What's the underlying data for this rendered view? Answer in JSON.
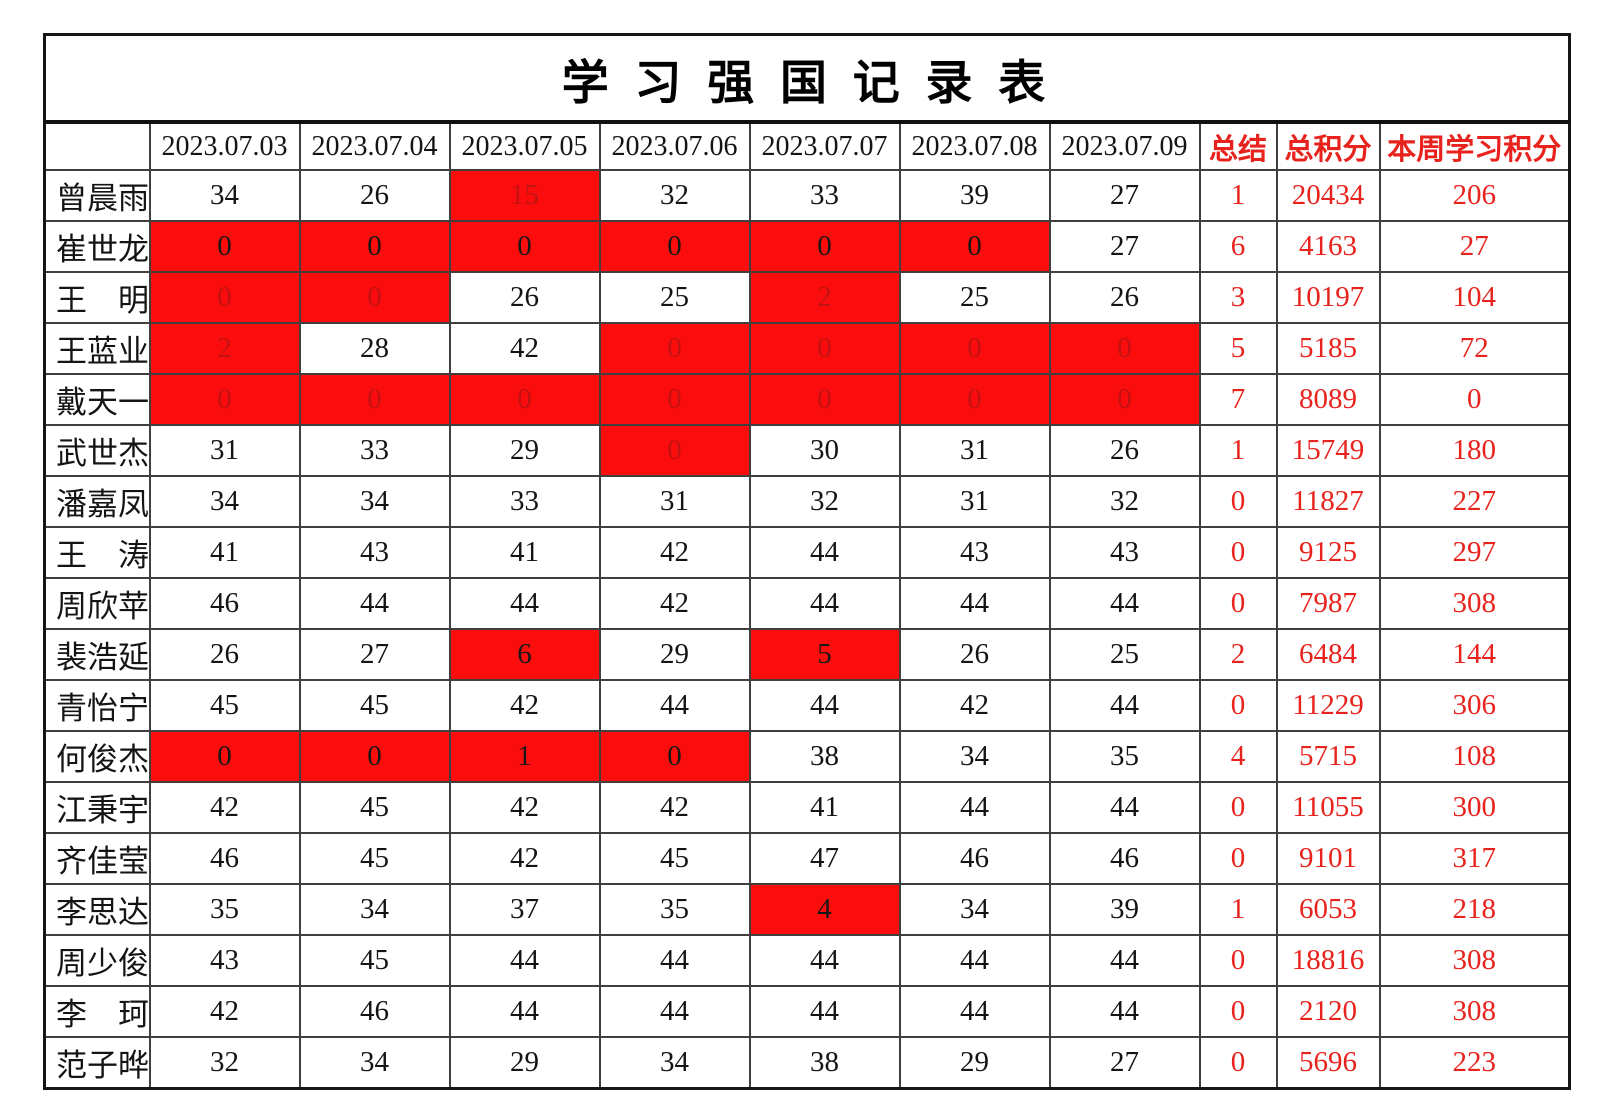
{
  "table": {
    "title": "学 习 强 国 记 录 表",
    "columns": {
      "dates": [
        "2023.07.03",
        "2023.07.04",
        "2023.07.05",
        "2023.07.06",
        "2023.07.07",
        "2023.07.08",
        "2023.07.09"
      ],
      "summary": "总结",
      "total": "总积分",
      "week": "本周学习积分"
    },
    "rows": [
      {
        "name": "曾晨雨",
        "days": [
          {
            "v": "34"
          },
          {
            "v": "26"
          },
          {
            "v": "15",
            "s": "rd"
          },
          {
            "v": "32"
          },
          {
            "v": "33"
          },
          {
            "v": "39"
          },
          {
            "v": "27"
          }
        ],
        "summary": "1",
        "total": "20434",
        "week": "206"
      },
      {
        "name": "崔世龙",
        "days": [
          {
            "v": "0",
            "s": "r"
          },
          {
            "v": "0",
            "s": "r"
          },
          {
            "v": "0",
            "s": "r"
          },
          {
            "v": "0",
            "s": "r"
          },
          {
            "v": "0",
            "s": "r"
          },
          {
            "v": "0",
            "s": "r"
          },
          {
            "v": "27"
          }
        ],
        "summary": "6",
        "total": "4163",
        "week": "27"
      },
      {
        "name": "王　明",
        "days": [
          {
            "v": "0",
            "s": "rd"
          },
          {
            "v": "0",
            "s": "rd"
          },
          {
            "v": "26"
          },
          {
            "v": "25"
          },
          {
            "v": "2",
            "s": "rd"
          },
          {
            "v": "25"
          },
          {
            "v": "26"
          }
        ],
        "summary": "3",
        "total": "10197",
        "week": "104"
      },
      {
        "name": "王蓝业",
        "days": [
          {
            "v": "2",
            "s": "rd"
          },
          {
            "v": "28"
          },
          {
            "v": "42"
          },
          {
            "v": "0",
            "s": "rd"
          },
          {
            "v": "0",
            "s": "rd"
          },
          {
            "v": "0",
            "s": "rd"
          },
          {
            "v": "0",
            "s": "rd"
          }
        ],
        "summary": "5",
        "total": "5185",
        "week": "72"
      },
      {
        "name": "戴天一",
        "days": [
          {
            "v": "0",
            "s": "rd"
          },
          {
            "v": "0",
            "s": "rd"
          },
          {
            "v": "0",
            "s": "rd"
          },
          {
            "v": "0",
            "s": "rd"
          },
          {
            "v": "0",
            "s": "rd"
          },
          {
            "v": "0",
            "s": "rd"
          },
          {
            "v": "0",
            "s": "rd"
          }
        ],
        "summary": "7",
        "total": "8089",
        "week": "0"
      },
      {
        "name": "武世杰",
        "days": [
          {
            "v": "31"
          },
          {
            "v": "33"
          },
          {
            "v": "29"
          },
          {
            "v": "0",
            "s": "rd"
          },
          {
            "v": "30"
          },
          {
            "v": "31"
          },
          {
            "v": "26"
          }
        ],
        "summary": "1",
        "total": "15749",
        "week": "180"
      },
      {
        "name": "潘嘉凤",
        "days": [
          {
            "v": "34"
          },
          {
            "v": "34"
          },
          {
            "v": "33"
          },
          {
            "v": "31"
          },
          {
            "v": "32"
          },
          {
            "v": "31"
          },
          {
            "v": "32"
          }
        ],
        "summary": "0",
        "total": "11827",
        "week": "227"
      },
      {
        "name": "王　涛",
        "days": [
          {
            "v": "41"
          },
          {
            "v": "43"
          },
          {
            "v": "41"
          },
          {
            "v": "42"
          },
          {
            "v": "44"
          },
          {
            "v": "43"
          },
          {
            "v": "43"
          }
        ],
        "summary": "0",
        "total": "9125",
        "week": "297"
      },
      {
        "name": "周欣苹",
        "days": [
          {
            "v": "46"
          },
          {
            "v": "44"
          },
          {
            "v": "44"
          },
          {
            "v": "42"
          },
          {
            "v": "44"
          },
          {
            "v": "44"
          },
          {
            "v": "44"
          }
        ],
        "summary": "0",
        "total": "7987",
        "week": "308"
      },
      {
        "name": "裴浩延",
        "days": [
          {
            "v": "26"
          },
          {
            "v": "27"
          },
          {
            "v": "6",
            "s": "r"
          },
          {
            "v": "29"
          },
          {
            "v": "5",
            "s": "r"
          },
          {
            "v": "26"
          },
          {
            "v": "25"
          }
        ],
        "summary": "2",
        "total": "6484",
        "week": "144"
      },
      {
        "name": "青怡宁",
        "days": [
          {
            "v": "45"
          },
          {
            "v": "45"
          },
          {
            "v": "42"
          },
          {
            "v": "44"
          },
          {
            "v": "44"
          },
          {
            "v": "42"
          },
          {
            "v": "44"
          }
        ],
        "summary": "0",
        "total": "11229",
        "week": "306"
      },
      {
        "name": "何俊杰",
        "days": [
          {
            "v": "0",
            "s": "r"
          },
          {
            "v": "0",
            "s": "r"
          },
          {
            "v": "1",
            "s": "r"
          },
          {
            "v": "0",
            "s": "r"
          },
          {
            "v": "38"
          },
          {
            "v": "34"
          },
          {
            "v": "35"
          }
        ],
        "summary": "4",
        "total": "5715",
        "week": "108"
      },
      {
        "name": "江秉宇",
        "days": [
          {
            "v": "42"
          },
          {
            "v": "45"
          },
          {
            "v": "42"
          },
          {
            "v": "42"
          },
          {
            "v": "41"
          },
          {
            "v": "44"
          },
          {
            "v": "44"
          }
        ],
        "summary": "0",
        "total": "11055",
        "week": "300"
      },
      {
        "name": "齐佳莹",
        "days": [
          {
            "v": "46"
          },
          {
            "v": "45"
          },
          {
            "v": "42"
          },
          {
            "v": "45"
          },
          {
            "v": "47"
          },
          {
            "v": "46"
          },
          {
            "v": "46"
          }
        ],
        "summary": "0",
        "total": "9101",
        "week": "317"
      },
      {
        "name": "李思达",
        "days": [
          {
            "v": "35"
          },
          {
            "v": "34"
          },
          {
            "v": "37"
          },
          {
            "v": "35"
          },
          {
            "v": "4",
            "s": "r"
          },
          {
            "v": "34"
          },
          {
            "v": "39"
          }
        ],
        "summary": "1",
        "total": "6053",
        "week": "218"
      },
      {
        "name": "周少俊",
        "days": [
          {
            "v": "43"
          },
          {
            "v": "45"
          },
          {
            "v": "44"
          },
          {
            "v": "44"
          },
          {
            "v": "44"
          },
          {
            "v": "44"
          },
          {
            "v": "44"
          }
        ],
        "summary": "0",
        "total": "18816",
        "week": "308"
      },
      {
        "name": "李　珂",
        "days": [
          {
            "v": "42"
          },
          {
            "v": "46"
          },
          {
            "v": "44"
          },
          {
            "v": "44"
          },
          {
            "v": "44"
          },
          {
            "v": "44"
          },
          {
            "v": "44"
          }
        ],
        "summary": "0",
        "total": "2120",
        "week": "308"
      },
      {
        "name": "范子晔",
        "days": [
          {
            "v": "32"
          },
          {
            "v": "34"
          },
          {
            "v": "29"
          },
          {
            "v": "34"
          },
          {
            "v": "38"
          },
          {
            "v": "29"
          },
          {
            "v": "27"
          }
        ],
        "summary": "0",
        "total": "5696",
        "week": "223"
      }
    ],
    "colors": {
      "highlight_bg": "#fc0d0d",
      "highlight_dim_text": "#c21212",
      "accent_red_text": "#e8231d"
    },
    "highlight_styles": {
      "r": "red background, black text",
      "rd": "red background, dark-red dim text"
    }
  }
}
